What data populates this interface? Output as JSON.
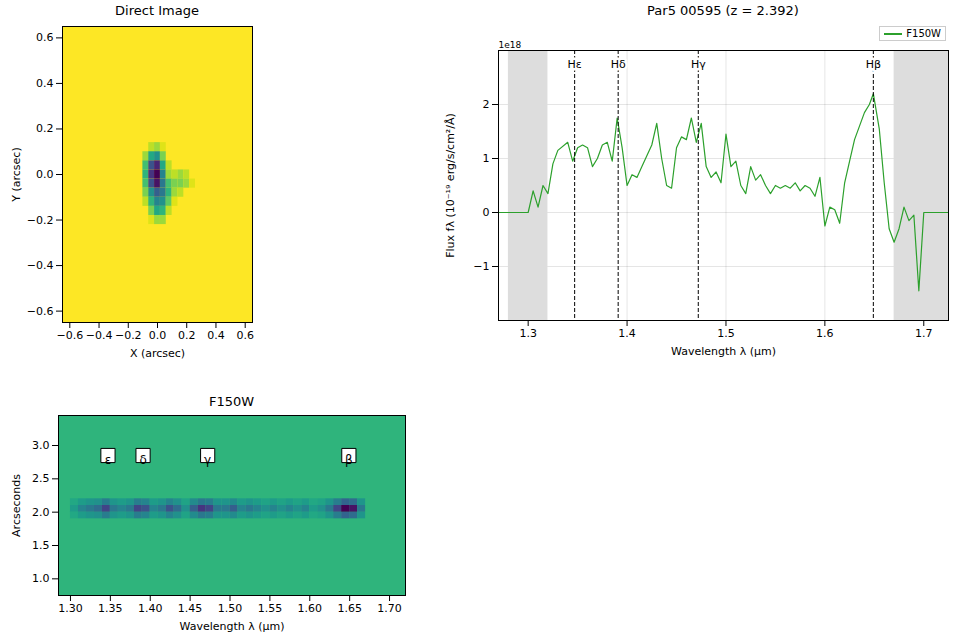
{
  "chart_data": [
    {
      "type": "heatmap",
      "title": "Direct Image",
      "x_label": "X (arcsec)",
      "y_label": "Y (arcsec)",
      "xlim": [
        -0.65,
        0.65
      ],
      "ylim": [
        -0.65,
        0.65
      ],
      "xticks": [
        {
          "value": -0.6,
          "label": "−0.6"
        },
        {
          "value": -0.4,
          "label": "−0.4"
        },
        {
          "value": -0.2,
          "label": "−0.2"
        },
        {
          "value": 0,
          "label": "0.0"
        },
        0.2,
        0.4,
        0.6
      ],
      "yticks": [
        {
          "value": -0.6,
          "label": "−0.6"
        },
        {
          "value": -0.4,
          "label": "−0.4"
        },
        {
          "value": -0.2,
          "label": "−0.2"
        },
        {
          "value": 0,
          "label": "0.0"
        },
        0.2,
        0.4,
        0.6
      ],
      "color": "viridis",
      "zlim": [
        0,
        1
      ],
      "background": 0,
      "cell_size": [
        0.04,
        0.04
      ],
      "cells": [
        [
          -0.04,
          0.12,
          0.1
        ],
        [
          0,
          0.12,
          0.15
        ],
        [
          0.04,
          0.12,
          0.05
        ],
        [
          -0.08,
          0.08,
          0.15
        ],
        [
          -0.04,
          0.08,
          0.4
        ],
        [
          0,
          0.08,
          0.5
        ],
        [
          0.04,
          0.08,
          0.2
        ],
        [
          -0.08,
          0.04,
          0.3
        ],
        [
          -0.04,
          0.04,
          0.75
        ],
        [
          0,
          0.04,
          0.9
        ],
        [
          0.04,
          0.04,
          0.4
        ],
        [
          0.08,
          0.04,
          0.1
        ],
        [
          -0.08,
          0,
          0.35
        ],
        [
          -0.04,
          0,
          0.85
        ],
        [
          0,
          0,
          1.0
        ],
        [
          0.04,
          0,
          0.55
        ],
        [
          0.08,
          0,
          0.15
        ],
        [
          0.12,
          0,
          0.1
        ],
        [
          0.16,
          0,
          0.15
        ],
        [
          0.2,
          0,
          0.1
        ],
        [
          -0.08,
          -0.04,
          0.3
        ],
        [
          -0.04,
          -0.04,
          0.75
        ],
        [
          0,
          -0.04,
          0.95
        ],
        [
          0.04,
          -0.04,
          0.6
        ],
        [
          0.08,
          -0.04,
          0.3
        ],
        [
          0.12,
          -0.04,
          0.2
        ],
        [
          0.16,
          -0.04,
          0.2
        ],
        [
          0.2,
          -0.04,
          0.15
        ],
        [
          0.24,
          -0.04,
          0.05
        ],
        [
          -0.08,
          -0.08,
          0.2
        ],
        [
          -0.04,
          -0.08,
          0.5
        ],
        [
          0,
          -0.08,
          0.7
        ],
        [
          0.04,
          -0.08,
          0.6
        ],
        [
          0.08,
          -0.08,
          0.35
        ],
        [
          0.12,
          -0.08,
          0.15
        ],
        [
          0.16,
          -0.08,
          0.1
        ],
        [
          -0.08,
          -0.12,
          0.1
        ],
        [
          -0.04,
          -0.12,
          0.35
        ],
        [
          0,
          -0.12,
          0.55
        ],
        [
          0.04,
          -0.12,
          0.5
        ],
        [
          0.08,
          -0.12,
          0.25
        ],
        [
          0.12,
          -0.12,
          0.05
        ],
        [
          -0.04,
          -0.16,
          0.2
        ],
        [
          0,
          -0.16,
          0.4
        ],
        [
          0.04,
          -0.16,
          0.35
        ],
        [
          0.08,
          -0.16,
          0.1
        ],
        [
          -0.04,
          -0.2,
          0.05
        ],
        [
          0,
          -0.2,
          0.15
        ],
        [
          0.04,
          -0.2,
          0.15
        ]
      ]
    },
    {
      "type": "line",
      "title": "Par5 00595 (z = 2.392)",
      "x_label": "Wavelength λ (μm)",
      "y_label": "Flux fλ (10⁻¹⁹ erg/s/cm²/Å)",
      "offset_label": "1e18",
      "xlim": [
        1.27,
        1.725
      ],
      "ylim": [
        -2,
        3
      ],
      "xticks": [
        1.3,
        1.4,
        1.5,
        1.6,
        1.7
      ],
      "yticks": [
        {
          "value": -1,
          "label": "−1"
        },
        0,
        1,
        2
      ],
      "grid": true,
      "legend": "upper right",
      "x": [
        1.27,
        1.3,
        1.305,
        1.31,
        1.315,
        1.32,
        1.325,
        1.33,
        1.34,
        1.345,
        1.35,
        1.355,
        1.36,
        1.365,
        1.37,
        1.375,
        1.38,
        1.385,
        1.39,
        1.395,
        1.4,
        1.405,
        1.41,
        1.415,
        1.42,
        1.425,
        1.43,
        1.435,
        1.44,
        1.445,
        1.45,
        1.455,
        1.46,
        1.465,
        1.47,
        1.475,
        1.48,
        1.485,
        1.49,
        1.495,
        1.5,
        1.505,
        1.51,
        1.515,
        1.52,
        1.525,
        1.53,
        1.535,
        1.54,
        1.545,
        1.55,
        1.555,
        1.56,
        1.565,
        1.57,
        1.575,
        1.58,
        1.585,
        1.59,
        1.595,
        1.6,
        1.605,
        1.61,
        1.615,
        1.62,
        1.625,
        1.63,
        1.635,
        1.64,
        1.645,
        1.649,
        1.655,
        1.66,
        1.665,
        1.67,
        1.675,
        1.68,
        1.685,
        1.69,
        1.695,
        1.7,
        1.725
      ],
      "series": [
        {
          "name": "F150W",
          "color": "#2ca02c",
          "values": [
            0,
            0,
            0.4,
            0.1,
            0.5,
            0.35,
            0.9,
            1.15,
            1.3,
            0.95,
            1.2,
            1.25,
            1.2,
            0.85,
            1.0,
            1.25,
            1.3,
            0.95,
            1.75,
            1.2,
            0.5,
            0.7,
            0.65,
            0.85,
            1.05,
            1.25,
            1.65,
            1.0,
            0.5,
            0.45,
            1.2,
            1.4,
            1.35,
            1.75,
            1.3,
            1.65,
            0.85,
            0.65,
            0.75,
            0.55,
            1.45,
            0.85,
            0.95,
            0.5,
            0.35,
            0.85,
            0.6,
            0.7,
            0.5,
            0.35,
            0.5,
            0.45,
            0.5,
            0.45,
            0.55,
            0.4,
            0.5,
            0.45,
            0.3,
            0.65,
            -0.25,
            0.1,
            0.05,
            -0.2,
            0.55,
            0.95,
            1.35,
            1.6,
            1.85,
            2.0,
            2.2,
            1.55,
            0.55,
            -0.3,
            -0.55,
            -0.3,
            0.1,
            -0.15,
            -0.05,
            -1.45,
            0,
            0
          ]
        }
      ],
      "shaded": [
        [
          1.28,
          1.32
        ],
        [
          1.67,
          1.725
        ]
      ],
      "lines": [
        {
          "name": "Hε",
          "x": 1.347
        },
        {
          "name": "Hδ",
          "x": 1.391
        },
        {
          "name": "Hγ",
          "x": 1.472
        },
        {
          "name": "Hβ",
          "x": 1.649
        }
      ]
    },
    {
      "type": "heatmap",
      "title": "F150W",
      "x_label": "Wavelength λ (μm)",
      "y_label": "Arcseconds",
      "xlim": [
        1.285,
        1.72
      ],
      "ylim": [
        0.75,
        3.45
      ],
      "xticks": [
        {
          "value": 1.3,
          "label": "1.30"
        },
        1.35,
        {
          "value": 1.4,
          "label": "1.40"
        },
        1.45,
        {
          "value": 1.5,
          "label": "1.50"
        },
        1.55,
        {
          "value": 1.6,
          "label": "1.60"
        },
        1.65,
        {
          "value": 1.7,
          "label": "1.70"
        }
      ],
      "yticks": [
        {
          "value": 1,
          "label": "1.0"
        },
        1.5,
        {
          "value": 2,
          "label": "2.0"
        },
        2.5,
        {
          "value": 3,
          "label": "3.0"
        }
      ],
      "color": "viridis",
      "zlim": [
        0,
        1
      ],
      "background": 0.35,
      "cell_size": [
        0.01,
        0.1
      ],
      "grid_cells": {
        "x": [
          1.305,
          1.315,
          1.325,
          1.335,
          1.345,
          1.355,
          1.365,
          1.375,
          1.385,
          1.395,
          1.405,
          1.415,
          1.425,
          1.435,
          1.445,
          1.455,
          1.465,
          1.475,
          1.485,
          1.495,
          1.505,
          1.515,
          1.525,
          1.535,
          1.545,
          1.555,
          1.565,
          1.575,
          1.585,
          1.595,
          1.605,
          1.615,
          1.625,
          1.635,
          1.645,
          1.655,
          1.665
        ],
        "y": [
          1.95,
          2.05,
          2.15
        ],
        "values": [
          [
            0.4,
            0.45,
            0.48,
            0.5,
            0.58,
            0.48,
            0.45,
            0.48,
            0.58,
            0.55,
            0.45,
            0.48,
            0.55,
            0.5,
            0.42,
            0.52,
            0.6,
            0.58,
            0.48,
            0.48,
            0.52,
            0.45,
            0.48,
            0.45,
            0.42,
            0.45,
            0.42,
            0.45,
            0.42,
            0.45,
            0.4,
            0.42,
            0.48,
            0.58,
            0.68,
            0.65,
            0.48
          ],
          [
            0.45,
            0.55,
            0.6,
            0.65,
            0.8,
            0.6,
            0.55,
            0.6,
            0.8,
            0.75,
            0.55,
            0.6,
            0.75,
            0.65,
            0.5,
            0.7,
            0.85,
            0.8,
            0.6,
            0.6,
            0.7,
            0.55,
            0.6,
            0.55,
            0.5,
            0.55,
            0.5,
            0.55,
            0.5,
            0.55,
            0.45,
            0.5,
            0.6,
            0.8,
            1.0,
            0.95,
            0.6
          ],
          [
            0.4,
            0.45,
            0.48,
            0.5,
            0.58,
            0.48,
            0.45,
            0.48,
            0.58,
            0.55,
            0.45,
            0.48,
            0.55,
            0.5,
            0.42,
            0.52,
            0.6,
            0.58,
            0.48,
            0.48,
            0.52,
            0.45,
            0.48,
            0.45,
            0.42,
            0.45,
            0.42,
            0.45,
            0.42,
            0.45,
            0.4,
            0.42,
            0.48,
            0.58,
            0.68,
            0.65,
            0.48
          ]
        ]
      },
      "lines": [
        {
          "name": "ε",
          "x": 1.347
        },
        {
          "name": "δ",
          "x": 1.391
        },
        {
          "name": "γ",
          "x": 1.472
        },
        {
          "name": "β",
          "x": 1.649
        }
      ]
    }
  ]
}
